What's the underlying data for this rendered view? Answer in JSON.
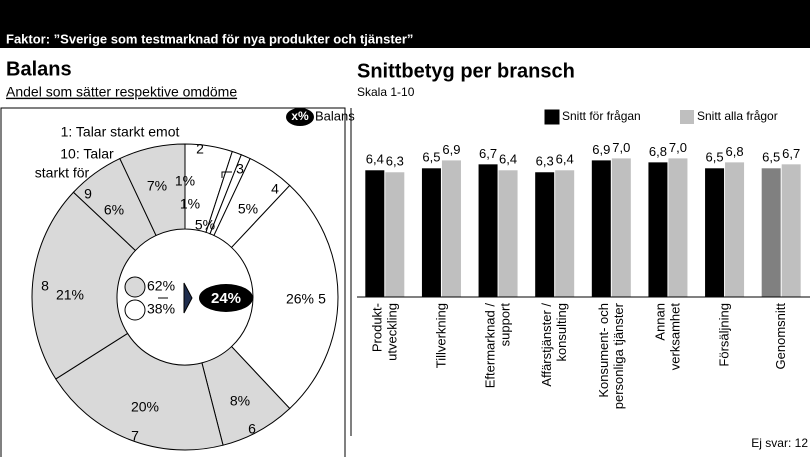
{
  "header": {
    "title": "Faktor: ”Sverige som testmarknad för nya produkter och tjänster”"
  },
  "chart_data": [
    {
      "type": "donut",
      "title": "Balans",
      "subtitle": "Andel som sätter respektive omdöme",
      "legend": {
        "symbol": "x%",
        "label": "Balans"
      },
      "scale_notes": [
        [
          "1: Talar starkt emot"
        ],
        [
          "10: Talar",
          "starkt för"
        ]
      ],
      "categories": [
        null,
        "2",
        "3",
        "4",
        "5",
        "6",
        "7",
        "8",
        "9",
        null
      ],
      "values": [
        5,
        1,
        1,
        5,
        26,
        8,
        20,
        21,
        6,
        7
      ],
      "value_labels": [
        "5%",
        "1%",
        "1%",
        "5%",
        "26%",
        "8%",
        "20%",
        "21%",
        "6%",
        "7%"
      ],
      "colors": [
        "#ffffff",
        "#ffffff",
        "#ffffff",
        "#ffffff",
        "#ffffff",
        "#d9d9d9",
        "#d9d9d9",
        "#d9d9d9",
        "#d9d9d9",
        "#d9d9d9"
      ],
      "summary": {
        "values": [
          62,
          38
        ],
        "value_labels": [
          "62%",
          "38%"
        ],
        "colors": [
          "#d9d9d9",
          "#ffffff"
        ]
      },
      "balance": {
        "value": 24,
        "label": "24%"
      }
    },
    {
      "type": "bar",
      "title": "Snittbetyg per bransch",
      "subtitle": "Skala 1-10",
      "categories": [
        [
          "Produkt-",
          "utveckling"
        ],
        [
          "Tillverkning"
        ],
        [
          "Eftermarknad /",
          "support"
        ],
        [
          "Affärstjänster /",
          "konsulting"
        ],
        [
          "Konsument- och",
          "personliga tjänster"
        ],
        [
          "Annan",
          "verksamhet"
        ],
        [
          "Försäljning"
        ],
        [
          "Genomsnitt"
        ]
      ],
      "series": [
        {
          "name": "Snitt för frågan",
          "color": "#000000",
          "last_color": "#808080",
          "values": [
            6.4,
            6.5,
            6.7,
            6.3,
            6.9,
            6.8,
            6.5,
            6.5
          ],
          "value_labels": [
            "6,4",
            "6,5",
            "6,7",
            "6,3",
            "6,9",
            "6,8",
            "6,5",
            "6,5"
          ]
        },
        {
          "name": "Snitt alla frågor",
          "color": "#bfbfbf",
          "values": [
            6.3,
            6.9,
            6.4,
            6.4,
            7.0,
            7.0,
            6.8,
            6.7
          ],
          "value_labels": [
            "6,3",
            "6,9",
            "6,4",
            "6,4",
            "7,0",
            "7,0",
            "6,8",
            "6,7"
          ]
        }
      ],
      "ylim": [
        0,
        10
      ],
      "footnote": "Ej svar: 12"
    }
  ]
}
